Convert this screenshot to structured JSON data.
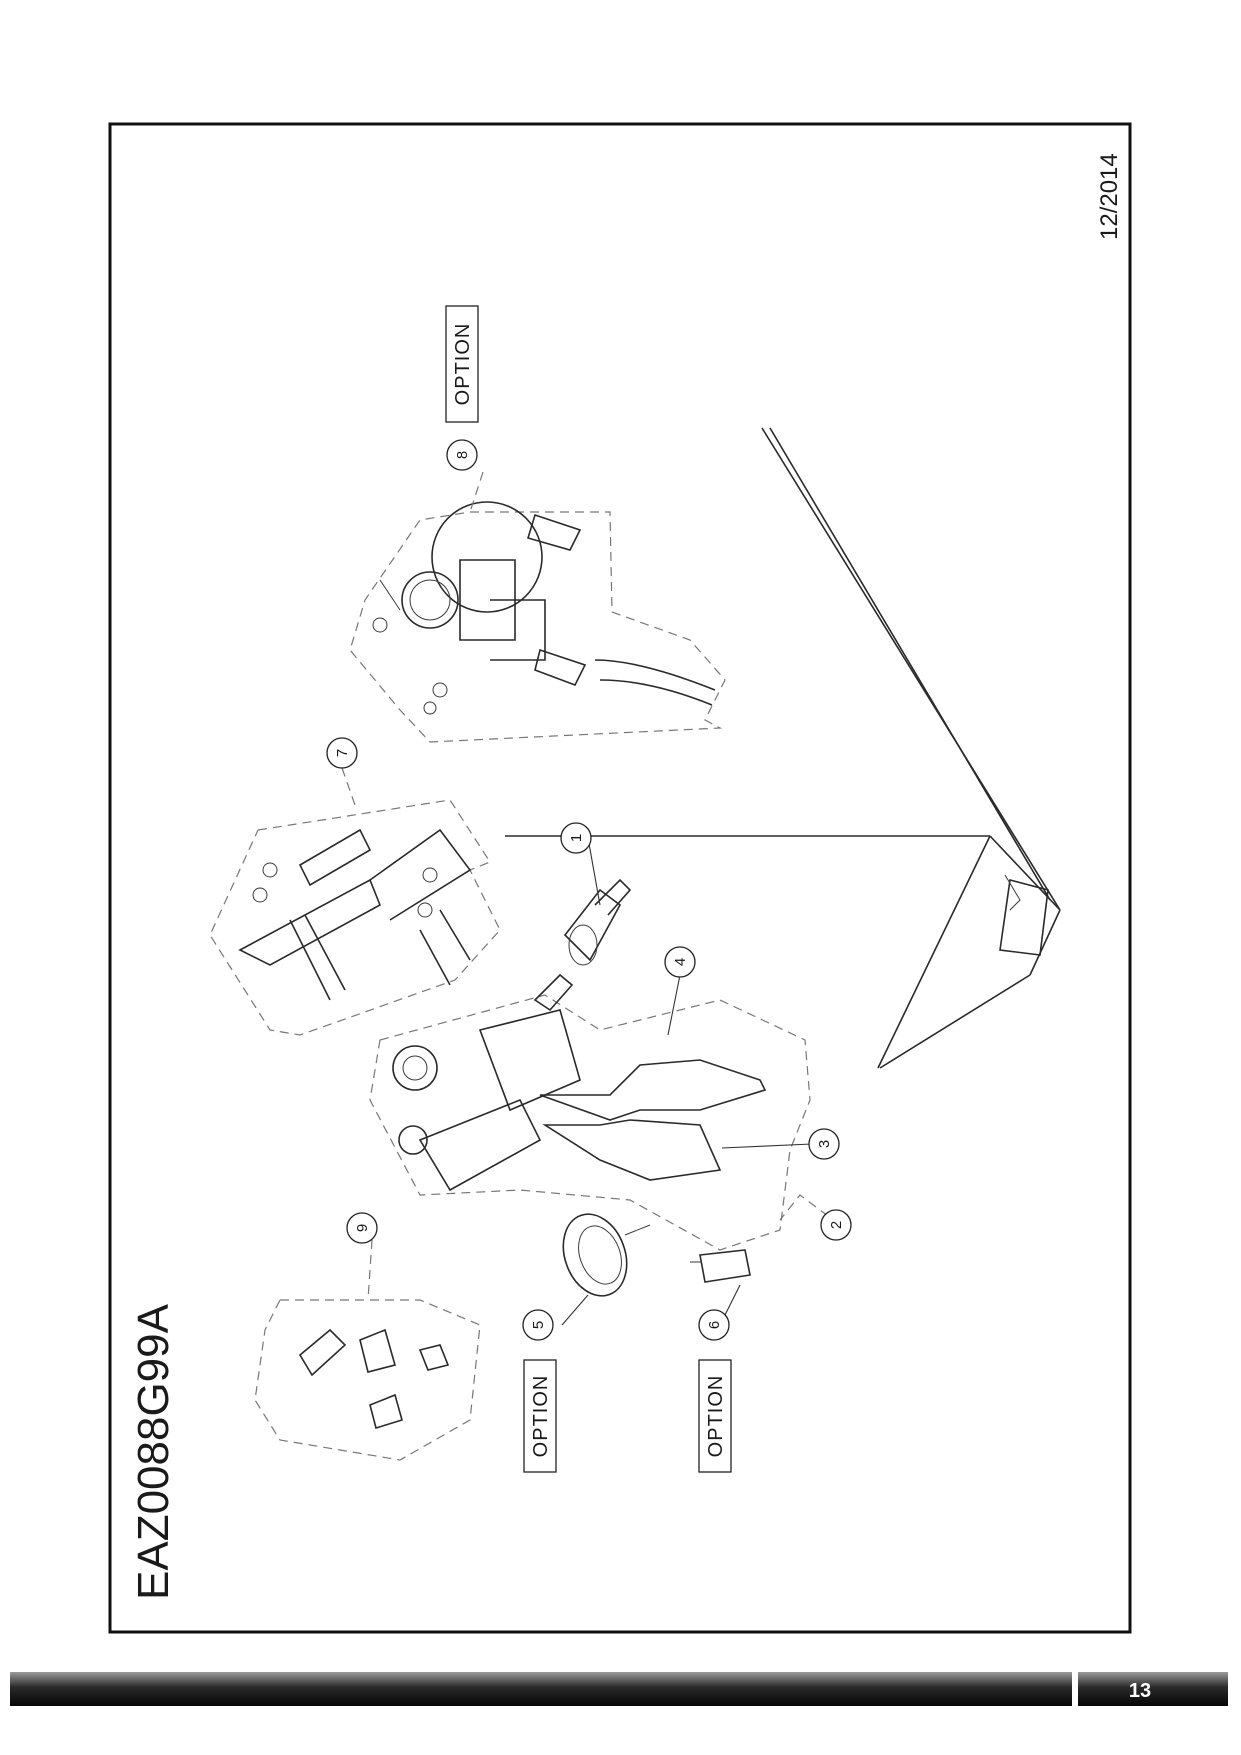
{
  "document": {
    "code": "EAZ0088G99A",
    "date": "12/2014",
    "page_number": "13"
  },
  "callouts": [
    {
      "id": "1",
      "label": "1"
    },
    {
      "id": "2",
      "label": "2"
    },
    {
      "id": "3",
      "label": "3"
    },
    {
      "id": "4",
      "label": "4"
    },
    {
      "id": "5",
      "label": "5"
    },
    {
      "id": "6",
      "label": "6"
    },
    {
      "id": "7",
      "label": "7"
    },
    {
      "id": "8",
      "label": "8"
    },
    {
      "id": "9",
      "label": "9"
    }
  ],
  "option_tags": {
    "near_8": "OPTION",
    "near_5": "OPTION",
    "near_6": "OPTION"
  }
}
